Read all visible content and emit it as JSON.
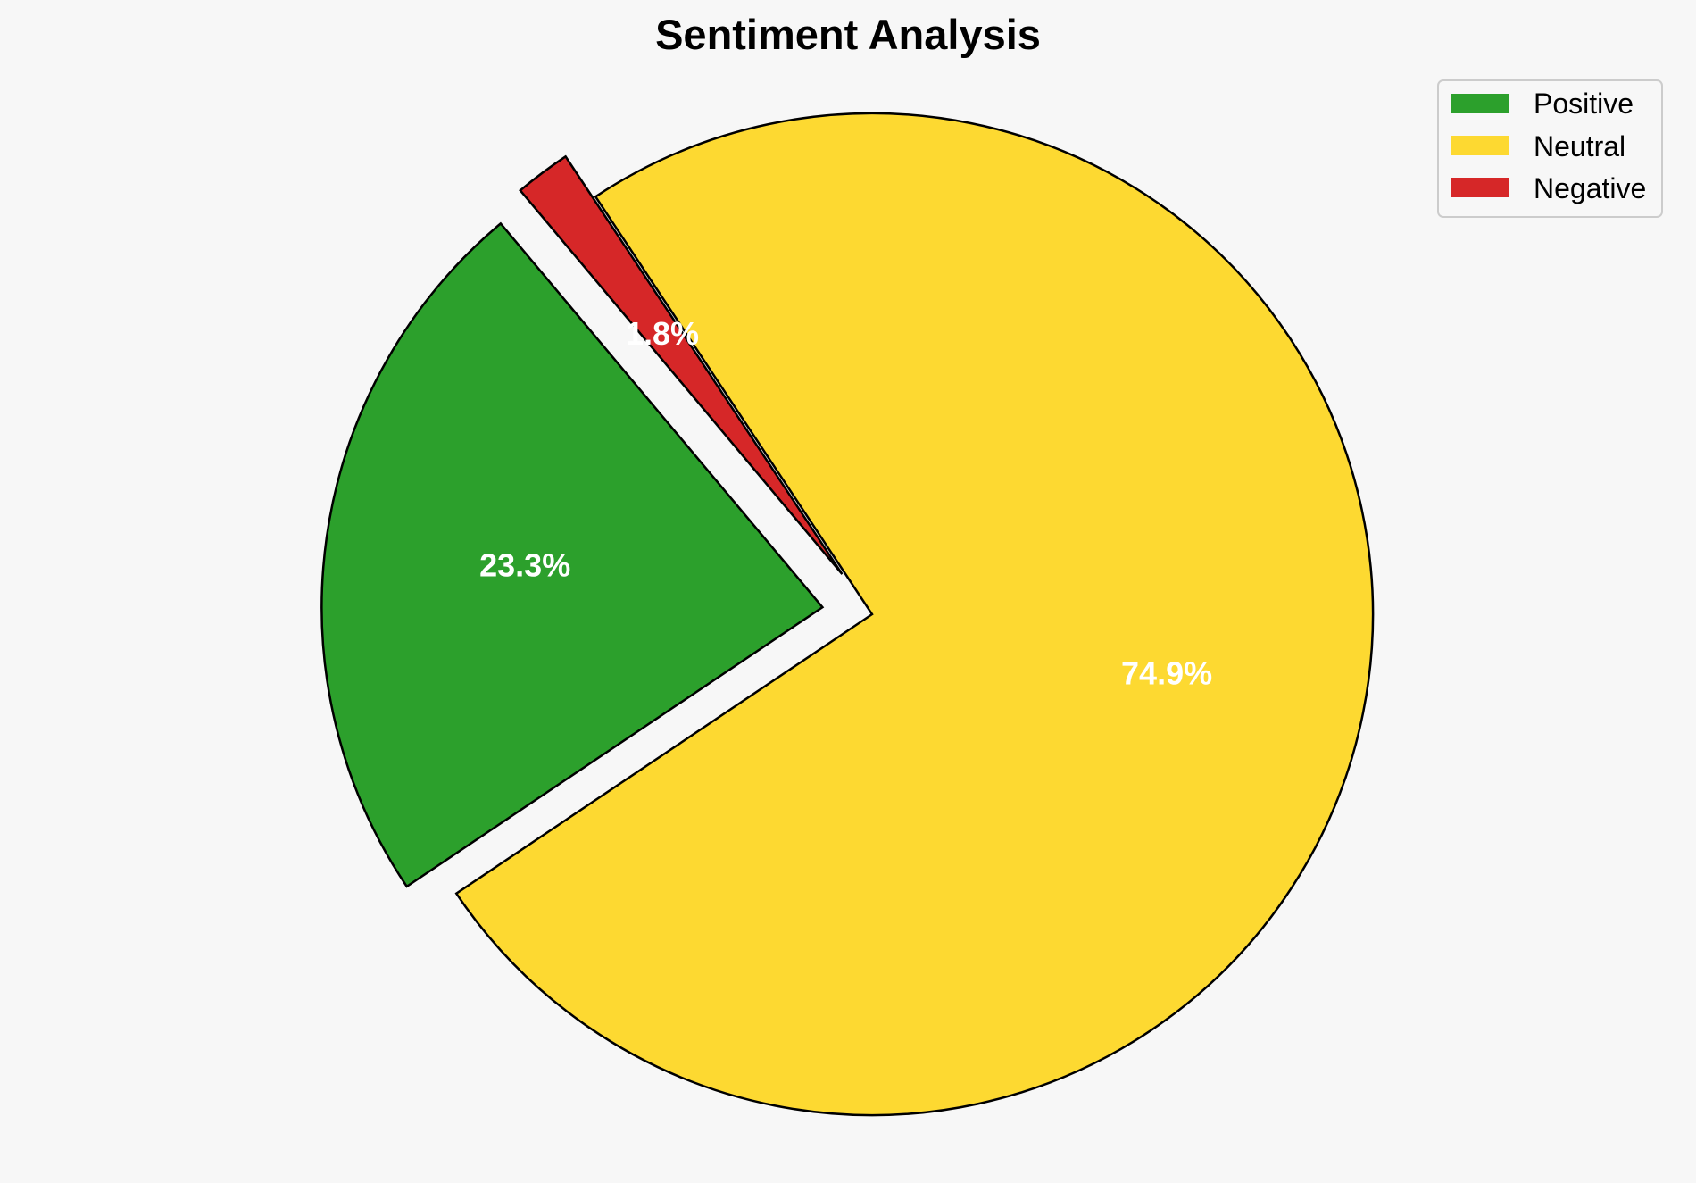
{
  "chart_data": {
    "type": "pie",
    "title": "Sentiment Analysis",
    "categories": [
      "Positive",
      "Neutral",
      "Negative"
    ],
    "values": [
      23.3,
      74.9,
      1.8
    ],
    "value_labels": [
      "23.3%",
      "74.9%",
      "1.8%"
    ],
    "colors": [
      "#2ca02c",
      "#fdd931",
      "#d62728"
    ],
    "exploded": [
      "Positive",
      "Negative"
    ],
    "legend": {
      "placement": "top-right",
      "entries": [
        "Positive",
        "Neutral",
        "Negative"
      ]
    }
  }
}
